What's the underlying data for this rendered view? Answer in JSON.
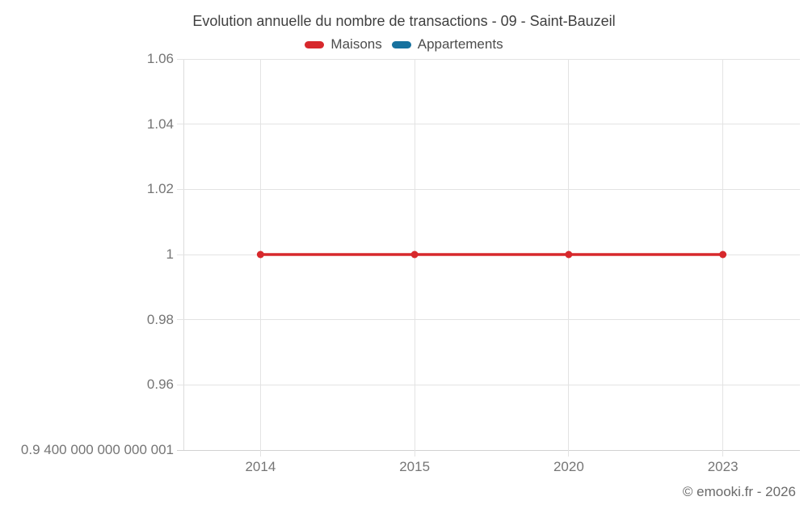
{
  "title": "Evolution annuelle du nombre de transactions - 09 - Saint-Bauzeil",
  "footer": "© emooki.fr - 2026",
  "legend": [
    {
      "label": "Maisons",
      "color": "#d7282c"
    },
    {
      "label": "Appartements",
      "color": "#17719e"
    }
  ],
  "colors": {
    "maisons": "#d7282c",
    "appartements": "#17719e",
    "gridline": "#e3e3e3",
    "tick_text": "#757575",
    "title_text": "#3f3f3f"
  },
  "chart_data": {
    "type": "line",
    "title": "Evolution annuelle du nombre de transactions - 09 - Saint-Bauzeil",
    "xlabel": "",
    "ylabel": "",
    "categories": [
      "2014",
      "2015",
      "2020",
      "2023"
    ],
    "series": [
      {
        "name": "Maisons",
        "color": "#d7282c",
        "values": [
          1,
          1,
          1,
          1
        ]
      },
      {
        "name": "Appartements",
        "color": "#17719e",
        "values": []
      }
    ],
    "ylim": [
      0.9400000000000001,
      1.06
    ],
    "y_ticks": [
      {
        "value": 1.06,
        "label": "1.06"
      },
      {
        "value": 1.04,
        "label": "1.04"
      },
      {
        "value": 1.02,
        "label": "1.02"
      },
      {
        "value": 1,
        "label": "1"
      },
      {
        "value": 0.98,
        "label": "0.98"
      },
      {
        "value": 0.96,
        "label": "0.96"
      },
      {
        "value": 0.9400000000000001,
        "label": "0.9 400 000 000 000 001"
      }
    ],
    "grid": true,
    "legend_position": "top"
  }
}
